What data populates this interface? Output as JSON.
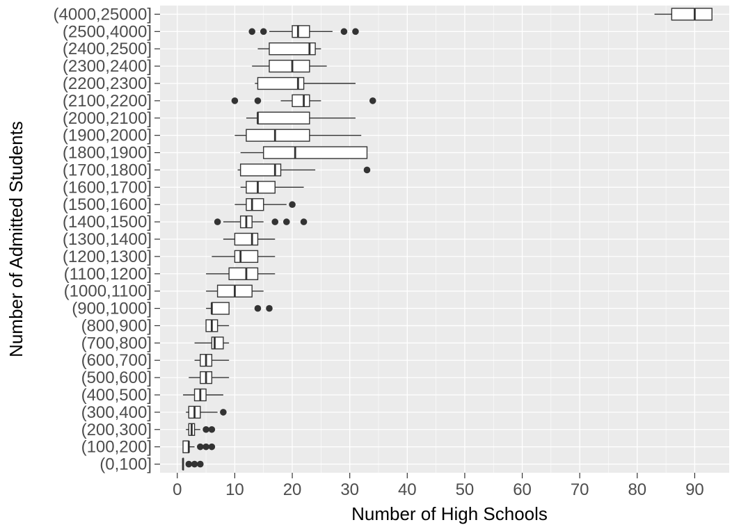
{
  "chart_data": {
    "type": "boxplot",
    "orientation": "horizontal",
    "xlabel": "Number of High Schools",
    "ylabel": "Number of Admitted Students",
    "xlim": [
      -3,
      96
    ],
    "x_ticks": [
      0,
      10,
      20,
      30,
      40,
      50,
      60,
      70,
      80,
      90
    ],
    "grid": true,
    "legend": "none",
    "colors": {
      "panel": "#ebebeb",
      "grid_major": "#ffffff",
      "box_fill": "#ffffff",
      "box_line": "#333333",
      "outlier": "#333333"
    },
    "categories": [
      "(0,100]",
      "(100,200]",
      "(200,300]",
      "(300,400]",
      "(400,500]",
      "(500,600]",
      "(600,700]",
      "(700,800]",
      "(800,900]",
      "(900,1000]",
      "(1000,1100]",
      "(1100,1200]",
      "(1200,1300]",
      "(1300,1400]",
      "(1400,1500]",
      "(1500,1600]",
      "(1600,1700]",
      "(1700,1800]",
      "(1800,1900]",
      "(1900,2000]",
      "(2000,2100]",
      "(2100,2200]",
      "(2200,2300]",
      "(2300,2400]",
      "(2400,2500]",
      "(2500,4000]",
      "(4000,25000]"
    ],
    "boxes": [
      {
        "min": 1,
        "q1": 1,
        "median": 1,
        "q3": 1,
        "max": 1,
        "outliers": [
          2,
          3,
          4
        ]
      },
      {
        "min": 1,
        "q1": 1,
        "median": 2,
        "q3": 2,
        "max": 3,
        "outliers": [
          4,
          5,
          6
        ]
      },
      {
        "min": 1.5,
        "q1": 2,
        "median": 2.5,
        "q3": 3,
        "max": 4,
        "outliers": [
          5,
          6
        ]
      },
      {
        "min": 1.5,
        "q1": 2,
        "median": 3,
        "q3": 4,
        "max": 7,
        "outliers": [
          8
        ]
      },
      {
        "min": 1,
        "q1": 3,
        "median": 4,
        "q3": 5,
        "max": 8,
        "outliers": []
      },
      {
        "min": 2,
        "q1": 4,
        "median": 5,
        "q3": 6,
        "max": 9,
        "outliers": []
      },
      {
        "min": 3,
        "q1": 4,
        "median": 5,
        "q3": 6,
        "max": 9,
        "outliers": []
      },
      {
        "min": 3,
        "q1": 6,
        "median": 6.5,
        "q3": 8,
        "max": 9,
        "outliers": []
      },
      {
        "min": 5,
        "q1": 5,
        "median": 6,
        "q3": 7,
        "max": 9,
        "outliers": []
      },
      {
        "min": 5,
        "q1": 6,
        "median": 6,
        "q3": 9,
        "max": 9,
        "outliers": [
          14,
          16
        ]
      },
      {
        "min": 5,
        "q1": 7,
        "median": 10,
        "q3": 13,
        "max": 15,
        "outliers": []
      },
      {
        "min": 5,
        "q1": 9,
        "median": 12,
        "q3": 14,
        "max": 17,
        "outliers": []
      },
      {
        "min": 6,
        "q1": 10,
        "median": 11,
        "q3": 14,
        "max": 17,
        "outliers": []
      },
      {
        "min": 8,
        "q1": 10,
        "median": 13,
        "q3": 14,
        "max": 17,
        "outliers": []
      },
      {
        "min": 8,
        "q1": 11,
        "median": 12,
        "q3": 13,
        "max": 15,
        "outliers": [
          7,
          17,
          19,
          22
        ]
      },
      {
        "min": 10,
        "q1": 12,
        "median": 13,
        "q3": 15,
        "max": 19,
        "outliers": [
          20
        ]
      },
      {
        "min": 11,
        "q1": 12,
        "median": 14,
        "q3": 17,
        "max": 22,
        "outliers": []
      },
      {
        "min": 10.5,
        "q1": 11,
        "median": 17,
        "q3": 18,
        "max": 24,
        "outliers": [
          33
        ]
      },
      {
        "min": 11,
        "q1": 15,
        "median": 20.5,
        "q3": 33,
        "max": 33,
        "outliers": []
      },
      {
        "min": 10,
        "q1": 12,
        "median": 17,
        "q3": 23,
        "max": 32,
        "outliers": []
      },
      {
        "min": 12,
        "q1": 14,
        "median": 14,
        "q3": 23,
        "max": 31,
        "outliers": []
      },
      {
        "min": 18,
        "q1": 20,
        "median": 22,
        "q3": 23,
        "max": 25,
        "outliers": [
          10,
          14,
          34
        ]
      },
      {
        "min": 13.5,
        "q1": 14,
        "median": 21,
        "q3": 22,
        "max": 31,
        "outliers": []
      },
      {
        "min": 13,
        "q1": 16,
        "median": 20,
        "q3": 23,
        "max": 26,
        "outliers": []
      },
      {
        "min": 14,
        "q1": 16,
        "median": 23,
        "q3": 24,
        "max": 25,
        "outliers": []
      },
      {
        "min": 16,
        "q1": 20,
        "median": 21,
        "q3": 23,
        "max": 27,
        "outliers": [
          13,
          15,
          29,
          31
        ]
      },
      {
        "min": 83,
        "q1": 86,
        "median": 90,
        "q3": 93,
        "max": 93,
        "outliers": []
      }
    ]
  }
}
